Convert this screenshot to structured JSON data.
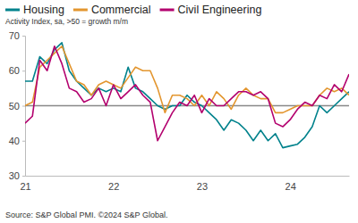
{
  "chart_data": {
    "type": "line",
    "subtitle": "Activity Index, sa, >50 = growth m/m",
    "source": "Source: S&P Global PMI. ©2024 S&P Global.",
    "categories": [
      "21",
      null,
      null,
      null,
      null,
      null,
      null,
      null,
      null,
      null,
      null,
      null,
      "22",
      null,
      null,
      null,
      null,
      null,
      null,
      null,
      null,
      null,
      null,
      null,
      "23",
      null,
      null,
      null,
      null,
      null,
      null,
      null,
      null,
      null,
      null,
      null,
      "24",
      null,
      null,
      null,
      null,
      null,
      null,
      null,
      null
    ],
    "series": [
      {
        "name": "Housing",
        "color": "#00828c",
        "values": [
          57,
          57,
          64,
          62,
          66,
          68,
          60,
          57,
          55,
          53,
          55,
          54,
          55,
          54,
          61,
          55,
          54,
          52,
          50,
          49,
          50,
          50,
          53,
          51,
          50,
          48,
          46,
          43,
          46,
          45,
          43,
          40,
          43,
          40,
          42,
          38,
          38.5,
          39,
          41,
          44,
          50,
          48,
          50,
          52,
          54
        ]
      },
      {
        "name": "Commercial",
        "color": "#e3962f",
        "values": [
          50,
          51,
          61,
          63,
          65,
          67,
          62,
          57,
          56,
          53,
          56,
          57,
          56,
          55,
          58,
          61,
          60,
          60,
          55,
          48,
          53,
          53,
          52,
          50,
          53,
          50,
          54,
          52,
          49,
          53,
          55,
          53,
          52,
          52,
          48,
          48,
          49,
          50,
          50,
          50,
          53,
          55,
          54,
          55,
          53
        ]
      },
      {
        "name": "Civil Engineering",
        "color": "#b3006e",
        "values": [
          45,
          47,
          63,
          60,
          67,
          62,
          55,
          54,
          51,
          52,
          55,
          50,
          56,
          52,
          54,
          56,
          53,
          51,
          40,
          44,
          48,
          51,
          50,
          53,
          48,
          52,
          50,
          50,
          52,
          54,
          54,
          53,
          54,
          52,
          45,
          44,
          46,
          49,
          51,
          50,
          53,
          52,
          56,
          54,
          59
        ]
      }
    ],
    "ylim": [
      30,
      70
    ],
    "yticks": [
      30,
      40,
      50,
      60,
      70
    ],
    "reference_line": 50,
    "grid": false,
    "legend": "top-left"
  }
}
